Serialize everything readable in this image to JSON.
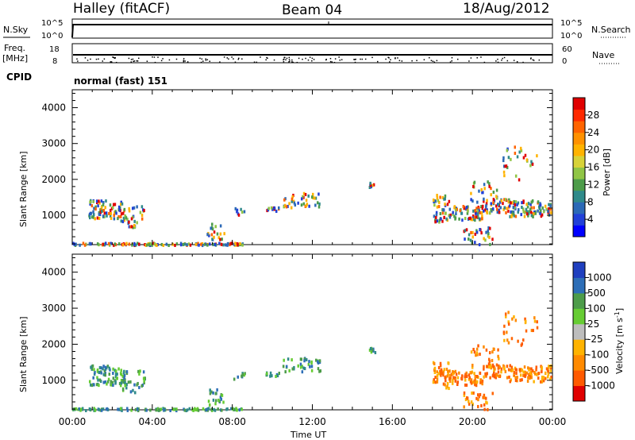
{
  "header": {
    "radar": "Halley (fitACF)",
    "beam": "Beam 04",
    "date": "18/Aug/2012"
  },
  "colors": {
    "line": "#000000",
    "fill_scatter_gray": "#bdbdbd"
  },
  "chart_data": [
    {
      "type": "line",
      "name": "noise-panel",
      "left_label": "N.Sky",
      "right_label": "N.Search",
      "left_ticks": [
        "10^5",
        "10^0"
      ],
      "right_ticks": [
        "10^5",
        "10^0"
      ]
    },
    {
      "type": "scatter",
      "name": "freq-nave-panel",
      "left_label_line1": "Freq.",
      "left_label_line2": "[MHz]",
      "left_ticks": [
        "18",
        "8"
      ],
      "right_label": "Nave",
      "right_ticks": [
        "60",
        "0"
      ],
      "cpid_label": "CPID",
      "cpid_value": "normal (fast) 151"
    },
    {
      "type": "heatmap",
      "name": "power-panel",
      "ylabel": "Slant Range [km]",
      "y_ticks": [
        "4000",
        "3000",
        "2000",
        "1000"
      ],
      "ylim": [
        180,
        4500
      ],
      "xlim_hours": [
        0,
        24
      ],
      "colorbar": {
        "label": "Power [dB]",
        "ticks": [
          "28",
          "24",
          "20",
          "16",
          "12",
          "8",
          "4"
        ],
        "colors": [
          "#e00000",
          "#ff2a00",
          "#ff6400",
          "#ff9100",
          "#ffb300",
          "#d7d238",
          "#90c545",
          "#4d9c4a",
          "#2f8a8a",
          "#2b69b7",
          "#2140d8",
          "#0000ff"
        ]
      }
    },
    {
      "type": "heatmap",
      "name": "velocity-panel",
      "ylabel": "Slant Range [km]",
      "y_ticks": [
        "4000",
        "3000",
        "2000",
        "1000"
      ],
      "ylim": [
        180,
        4500
      ],
      "xlim_hours": [
        0,
        24
      ],
      "x_ticks": [
        "00:00",
        "04:00",
        "08:00",
        "12:00",
        "16:00",
        "20:00",
        "00:00"
      ],
      "xlabel": "Time UT",
      "colorbar": {
        "label": "Velocity [m s",
        "label_sup": "-1",
        "label_end": "]",
        "ticks": [
          "1000",
          "500",
          "100",
          "25",
          "-25",
          "-100",
          "-500",
          "-1000"
        ],
        "colors": [
          "#1f3fbf",
          "#2d6eb7",
          "#4d9c4a",
          "#66cc33",
          "#bdbdbd",
          "#ffb300",
          "#ff8a00",
          "#ff5a00",
          "#e00000"
        ]
      }
    }
  ]
}
